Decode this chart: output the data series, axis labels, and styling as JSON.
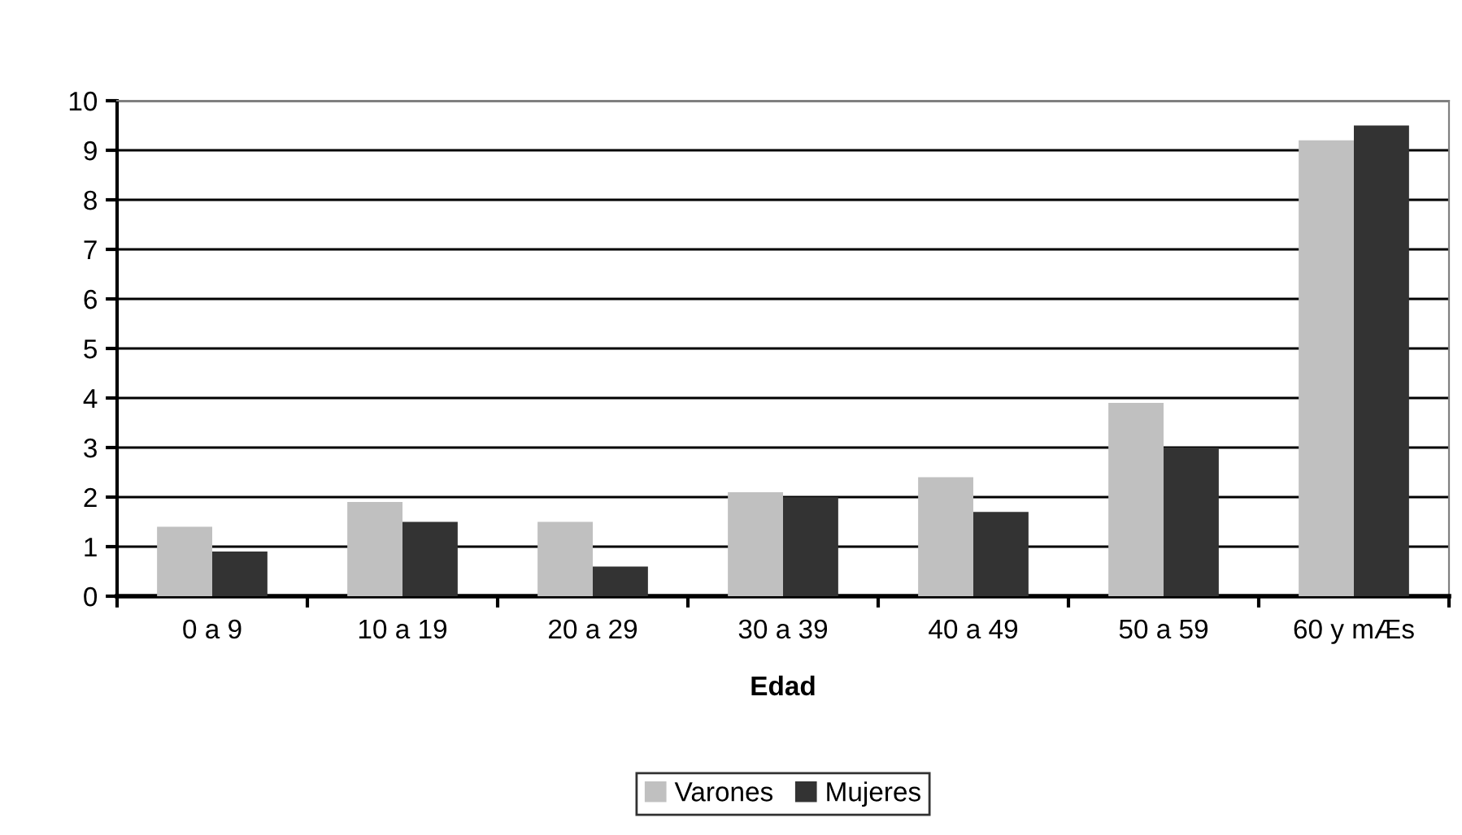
{
  "chart_data": {
    "type": "bar",
    "xlabel": "Edad",
    "categories": [
      "0 a 9",
      "10 a 19",
      "20 a 29",
      "30 a 39",
      "40 a 49",
      "50 a 59",
      "60 y mÆs"
    ],
    "series": [
      {
        "name": "Varones",
        "color": "#c0c0c0",
        "values": [
          1.4,
          1.9,
          1.5,
          2.1,
          2.4,
          3.9,
          9.2
        ]
      },
      {
        "name": "Mujeres",
        "color": "#333333",
        "values": [
          0.9,
          1.5,
          0.6,
          2.0,
          1.7,
          3.0,
          9.5
        ]
      }
    ],
    "ylim": [
      0,
      10
    ],
    "yticks": [
      0,
      1,
      2,
      3,
      4,
      5,
      6,
      7,
      8,
      9,
      10
    ],
    "grid": "y",
    "legend": "bottom"
  }
}
